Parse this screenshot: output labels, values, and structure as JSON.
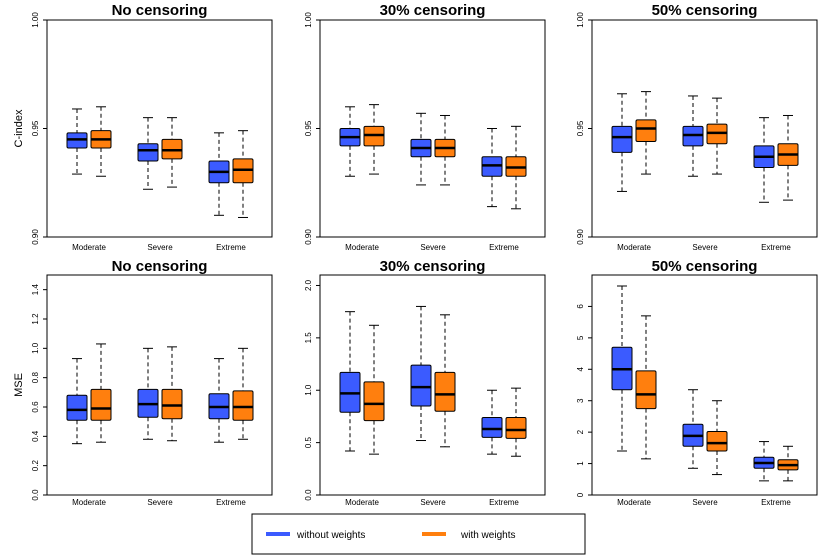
{
  "legend": {
    "items": [
      {
        "label": "without weights",
        "color": "#3b5bff"
      },
      {
        "label": "with weights",
        "color": "#ff7f0e"
      }
    ]
  },
  "chart_data": [
    {
      "type": "box",
      "title": "No censoring",
      "ylabel": "C-index",
      "ylim": [
        0.9,
        1.0
      ],
      "yticks": [
        0.9,
        0.95,
        1.0
      ],
      "ytick_labels": [
        "0.90",
        "0.95",
        "1.00"
      ],
      "categories": [
        "Moderate",
        "Severe",
        "Extreme"
      ],
      "series": [
        {
          "name": "without weights",
          "boxes": [
            {
              "min": 0.929,
              "q1": 0.941,
              "median": 0.945,
              "q3": 0.948,
              "max": 0.959
            },
            {
              "min": 0.922,
              "q1": 0.935,
              "median": 0.94,
              "q3": 0.943,
              "max": 0.955
            },
            {
              "min": 0.91,
              "q1": 0.925,
              "median": 0.93,
              "q3": 0.935,
              "max": 0.948
            }
          ]
        },
        {
          "name": "with weights",
          "boxes": [
            {
              "min": 0.928,
              "q1": 0.941,
              "median": 0.945,
              "q3": 0.949,
              "max": 0.96
            },
            {
              "min": 0.923,
              "q1": 0.936,
              "median": 0.94,
              "q3": 0.945,
              "max": 0.955
            },
            {
              "min": 0.909,
              "q1": 0.925,
              "median": 0.931,
              "q3": 0.936,
              "max": 0.949
            }
          ]
        }
      ]
    },
    {
      "type": "box",
      "title": "30% censoring",
      "ylabel": "",
      "ylim": [
        0.9,
        1.0
      ],
      "yticks": [
        0.9,
        0.95,
        1.0
      ],
      "ytick_labels": [
        "0.90",
        "0.95",
        "1.00"
      ],
      "categories": [
        "Moderate",
        "Severe",
        "Extreme"
      ],
      "series": [
        {
          "name": "without weights",
          "boxes": [
            {
              "min": 0.928,
              "q1": 0.942,
              "median": 0.946,
              "q3": 0.95,
              "max": 0.96
            },
            {
              "min": 0.924,
              "q1": 0.937,
              "median": 0.941,
              "q3": 0.945,
              "max": 0.957
            },
            {
              "min": 0.914,
              "q1": 0.928,
              "median": 0.933,
              "q3": 0.937,
              "max": 0.95
            }
          ]
        },
        {
          "name": "with weights",
          "boxes": [
            {
              "min": 0.929,
              "q1": 0.942,
              "median": 0.947,
              "q3": 0.951,
              "max": 0.961
            },
            {
              "min": 0.924,
              "q1": 0.937,
              "median": 0.941,
              "q3": 0.945,
              "max": 0.956
            },
            {
              "min": 0.913,
              "q1": 0.928,
              "median": 0.932,
              "q3": 0.937,
              "max": 0.951
            }
          ]
        }
      ]
    },
    {
      "type": "box",
      "title": "50% censoring",
      "ylabel": "",
      "ylim": [
        0.9,
        1.0
      ],
      "yticks": [
        0.9,
        0.95,
        1.0
      ],
      "ytick_labels": [
        "0.90",
        "0.95",
        "1.00"
      ],
      "categories": [
        "Moderate",
        "Severe",
        "Extreme"
      ],
      "series": [
        {
          "name": "without weights",
          "boxes": [
            {
              "min": 0.921,
              "q1": 0.939,
              "median": 0.946,
              "q3": 0.951,
              "max": 0.966
            },
            {
              "min": 0.928,
              "q1": 0.942,
              "median": 0.947,
              "q3": 0.951,
              "max": 0.965
            },
            {
              "min": 0.916,
              "q1": 0.932,
              "median": 0.937,
              "q3": 0.942,
              "max": 0.955
            }
          ]
        },
        {
          "name": "with weights",
          "boxes": [
            {
              "min": 0.929,
              "q1": 0.944,
              "median": 0.95,
              "q3": 0.954,
              "max": 0.967
            },
            {
              "min": 0.929,
              "q1": 0.943,
              "median": 0.948,
              "q3": 0.952,
              "max": 0.964
            },
            {
              "min": 0.917,
              "q1": 0.933,
              "median": 0.938,
              "q3": 0.943,
              "max": 0.956
            }
          ]
        }
      ]
    },
    {
      "type": "box",
      "title": "No censoring",
      "ylabel": "MSE",
      "ylim": [
        0,
        1.5
      ],
      "yticks": [
        0,
        0.2,
        0.4,
        0.6,
        0.8,
        1.0,
        1.2,
        1.4
      ],
      "ytick_labels": [
        "0.0",
        "0.2",
        "0.4",
        "0.6",
        "0.8",
        "1.0",
        "1.2",
        "1.4"
      ],
      "categories": [
        "Moderate",
        "Severe",
        "Extreme"
      ],
      "series": [
        {
          "name": "without weights",
          "boxes": [
            {
              "min": 0.35,
              "q1": 0.51,
              "median": 0.58,
              "q3": 0.68,
              "max": 0.93
            },
            {
              "min": 0.38,
              "q1": 0.53,
              "median": 0.62,
              "q3": 0.72,
              "max": 1.0
            },
            {
              "min": 0.36,
              "q1": 0.52,
              "median": 0.6,
              "q3": 0.69,
              "max": 0.93
            }
          ]
        },
        {
          "name": "with weights",
          "boxes": [
            {
              "min": 0.36,
              "q1": 0.51,
              "median": 0.59,
              "q3": 0.72,
              "max": 1.03
            },
            {
              "min": 0.37,
              "q1": 0.52,
              "median": 0.61,
              "q3": 0.72,
              "max": 1.01
            },
            {
              "min": 0.38,
              "q1": 0.51,
              "median": 0.6,
              "q3": 0.71,
              "max": 1.0
            }
          ]
        }
      ]
    },
    {
      "type": "box",
      "title": "30% censoring",
      "ylabel": "",
      "ylim": [
        0,
        2.1
      ],
      "yticks": [
        0,
        0.5,
        1.0,
        1.5,
        2.0
      ],
      "ytick_labels": [
        "0.0",
        "0.5",
        "1.0",
        "1.5",
        "2.0"
      ],
      "categories": [
        "Moderate",
        "Severe",
        "Extreme"
      ],
      "series": [
        {
          "name": "without weights",
          "boxes": [
            {
              "min": 0.42,
              "q1": 0.79,
              "median": 0.97,
              "q3": 1.17,
              "max": 1.75
            },
            {
              "min": 0.52,
              "q1": 0.85,
              "median": 1.03,
              "q3": 1.24,
              "max": 1.8
            },
            {
              "min": 0.39,
              "q1": 0.55,
              "median": 0.63,
              "q3": 0.74,
              "max": 1.0
            }
          ]
        },
        {
          "name": "with weights",
          "boxes": [
            {
              "min": 0.39,
              "q1": 0.71,
              "median": 0.87,
              "q3": 1.08,
              "max": 1.62
            },
            {
              "min": 0.46,
              "q1": 0.8,
              "median": 0.96,
              "q3": 1.17,
              "max": 1.72
            },
            {
              "min": 0.37,
              "q1": 0.54,
              "median": 0.62,
              "q3": 0.74,
              "max": 1.02
            }
          ]
        }
      ]
    },
    {
      "type": "box",
      "title": "50% censoring",
      "ylabel": "",
      "ylim": [
        0,
        7
      ],
      "yticks": [
        0,
        1,
        2,
        3,
        4,
        5,
        6
      ],
      "ytick_labels": [
        "0",
        "1",
        "2",
        "3",
        "4",
        "5",
        "6"
      ],
      "categories": [
        "Moderate",
        "Severe",
        "Extreme"
      ],
      "series": [
        {
          "name": "without weights",
          "boxes": [
            {
              "min": 1.4,
              "q1": 3.35,
              "median": 4.0,
              "q3": 4.7,
              "max": 6.65
            },
            {
              "min": 0.85,
              "q1": 1.55,
              "median": 1.88,
              "q3": 2.25,
              "max": 3.35
            },
            {
              "min": 0.45,
              "q1": 0.85,
              "median": 1.02,
              "q3": 1.2,
              "max": 1.7
            }
          ]
        },
        {
          "name": "with weights",
          "boxes": [
            {
              "min": 1.15,
              "q1": 2.75,
              "median": 3.2,
              "q3": 3.95,
              "max": 5.7
            },
            {
              "min": 0.65,
              "q1": 1.4,
              "median": 1.65,
              "q3": 2.02,
              "max": 3.0
            },
            {
              "min": 0.45,
              "q1": 0.8,
              "median": 0.95,
              "q3": 1.12,
              "max": 1.55
            }
          ]
        }
      ]
    }
  ]
}
